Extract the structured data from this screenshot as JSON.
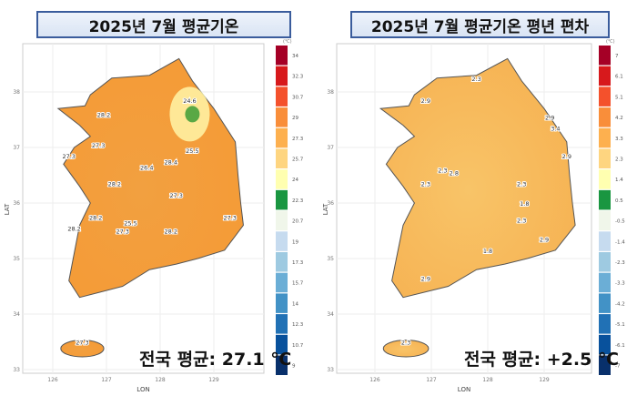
{
  "maps": [
    {
      "title": "2025년 7월 평균기온",
      "national_average": "전국 평균: 27.1 ℃",
      "legend_unit": "(℃)",
      "legend_ticks": [
        "34",
        "32.3",
        "30.7",
        "29",
        "27.3",
        "25.7",
        "24",
        "22.3",
        "20.7",
        "19",
        "17.3",
        "15.7",
        "14",
        "12.3",
        "10.7",
        "9"
      ],
      "fill_color": "#f2a040",
      "contour_labels": [
        {
          "text": "24.6",
          "lon": 128.55,
          "lat": 37.8
        },
        {
          "text": "28.2",
          "lon": 126.95,
          "lat": 37.55
        },
        {
          "text": "27.3",
          "lon": 126.85,
          "lat": 37.0
        },
        {
          "text": "27.3",
          "lon": 126.3,
          "lat": 36.8
        },
        {
          "text": "28.2",
          "lon": 127.15,
          "lat": 36.3
        },
        {
          "text": "26.4",
          "lon": 127.75,
          "lat": 36.6
        },
        {
          "text": "28.4",
          "lon": 128.2,
          "lat": 36.7
        },
        {
          "text": "25.5",
          "lon": 128.6,
          "lat": 36.9
        },
        {
          "text": "27.3",
          "lon": 128.3,
          "lat": 36.1
        },
        {
          "text": "28.2",
          "lon": 126.8,
          "lat": 35.7
        },
        {
          "text": "25.5",
          "lon": 127.45,
          "lat": 35.6
        },
        {
          "text": "27.3",
          "lon": 127.3,
          "lat": 35.45
        },
        {
          "text": "28.2",
          "lon": 128.2,
          "lat": 35.45
        },
        {
          "text": "27.3",
          "lon": 129.3,
          "lat": 35.7
        },
        {
          "text": "28.2",
          "lon": 126.4,
          "lat": 35.5
        },
        {
          "text": "27.3",
          "lon": 126.55,
          "lat": 33.45
        }
      ]
    },
    {
      "title": "2025년 7월 평균기온 평년 편차",
      "national_average": "전국 평균: +2.5 ℃",
      "legend_unit": "(℃)",
      "legend_ticks": [
        "7",
        "6.1",
        "5.1",
        "4.2",
        "3.3",
        "2.3",
        "1.4",
        "0.5",
        "-0.5",
        "-1.4",
        "-2.3",
        "-3.3",
        "-4.2",
        "-5.1",
        "-6.1",
        "-7"
      ],
      "fill_color": "#f8c468",
      "contour_labels": [
        {
          "text": "2.3",
          "lon": 127.8,
          "lat": 38.2
        },
        {
          "text": "2.9",
          "lon": 126.9,
          "lat": 37.8
        },
        {
          "text": "2.9",
          "lon": 129.1,
          "lat": 37.5
        },
        {
          "text": "3.4",
          "lon": 129.2,
          "lat": 37.3
        },
        {
          "text": "2.9",
          "lon": 129.4,
          "lat": 36.8
        },
        {
          "text": "2.3",
          "lon": 127.2,
          "lat": 36.55
        },
        {
          "text": "2.8",
          "lon": 127.4,
          "lat": 36.5
        },
        {
          "text": "2.3",
          "lon": 126.9,
          "lat": 36.3
        },
        {
          "text": "2.3",
          "lon": 128.6,
          "lat": 36.3
        },
        {
          "text": "1.8",
          "lon": 128.65,
          "lat": 35.95
        },
        {
          "text": "2.3",
          "lon": 128.6,
          "lat": 35.65
        },
        {
          "text": "2.9",
          "lon": 129.0,
          "lat": 35.3
        },
        {
          "text": "1.8",
          "lon": 128.0,
          "lat": 35.1
        },
        {
          "text": "2.9",
          "lon": 126.9,
          "lat": 34.6
        },
        {
          "text": "2.3",
          "lon": 126.55,
          "lat": 33.45
        }
      ]
    }
  ],
  "legend_colors": [
    "#a50026",
    "#d7191c",
    "#f4512c",
    "#f98e3a",
    "#fdb04f",
    "#fed580",
    "#ffffb0",
    "#1a9641",
    "#f0f6ea",
    "#c6dbef",
    "#9ecae1",
    "#6baed6",
    "#4292c6",
    "#2171b5",
    "#08519c",
    "#08306b"
  ],
  "axes": {
    "xlabel": "LON",
    "ylabel": "LAT",
    "lon_ticks": [
      "126",
      "127",
      "128",
      "129"
    ],
    "lat_ticks": [
      "38",
      "37",
      "36",
      "35",
      "34",
      "33"
    ]
  }
}
